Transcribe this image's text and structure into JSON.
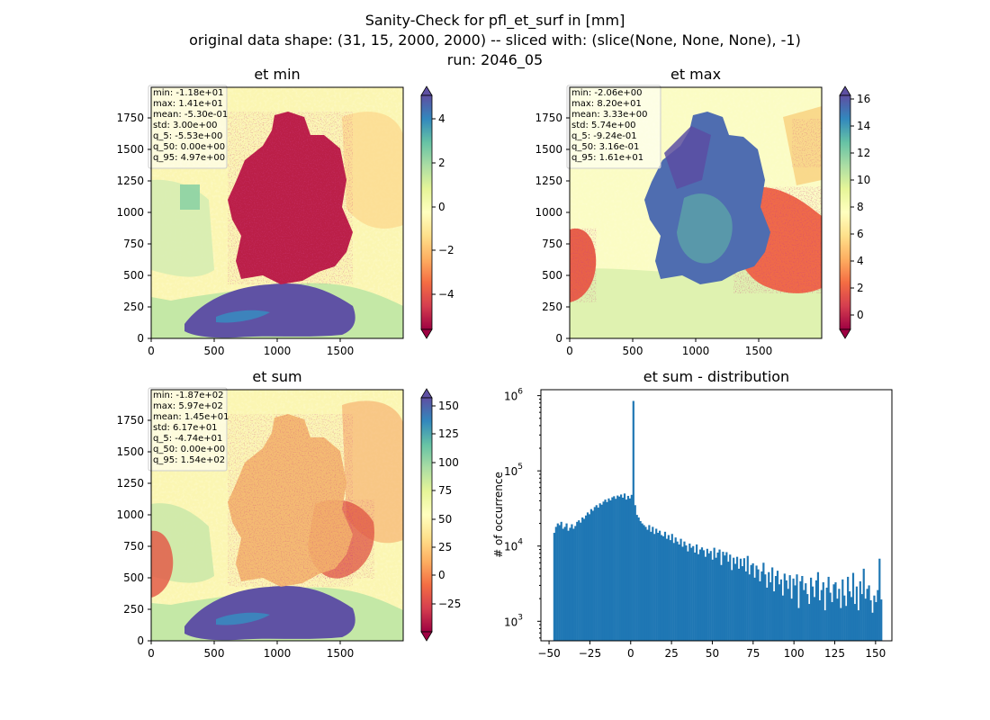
{
  "figure": {
    "title_lines": [
      "Sanity-Check for pfl_et_surf in [mm]",
      "original data shape: (31, 15, 2000, 2000) -- sliced with: (slice(None, None, None), -1)",
      "run: 2046_05"
    ]
  },
  "colors": {
    "hist_bar": "#1f77b4",
    "spectral_stops": [
      "#9e0142",
      "#d53e4f",
      "#f46d43",
      "#fdae61",
      "#fee08b",
      "#ffffbf",
      "#e6f598",
      "#abdda4",
      "#66c2a5",
      "#3288bd",
      "#5e4fa2"
    ]
  },
  "panels": {
    "et_min": {
      "title": "et min",
      "stats": [
        "min: -1.18e+01",
        "max: 1.41e+01",
        "mean: -5.30e-01",
        "std: 3.00e+00",
        "q_5: -5.53e+00",
        "q_50: 0.00e+00",
        "q_95: 4.97e+00"
      ],
      "x_ticks": [
        "0",
        "500",
        "1000",
        "1500"
      ],
      "y_ticks": [
        "0",
        "250",
        "500",
        "750",
        "1000",
        "1250",
        "1500",
        "1750"
      ],
      "colorbar_ticks": [
        "4",
        "2",
        "0",
        "−2",
        "−4"
      ],
      "colorbar_range": [
        -5.53,
        4.97
      ]
    },
    "et_max": {
      "title": "et max",
      "stats": [
        "min: -2.06e+00",
        "max: 8.20e+01",
        "mean: 3.33e+00",
        "std: 5.74e+00",
        "q_5: -9.24e-01",
        "q_50: 3.16e-01",
        "q_95: 1.61e+01"
      ],
      "x_ticks": [
        "0",
        "500",
        "1000",
        "1500"
      ],
      "y_ticks": [
        "0",
        "250",
        "500",
        "750",
        "1000",
        "1250",
        "1500",
        "1750"
      ],
      "colorbar_ticks": [
        "16",
        "14",
        "12",
        "10",
        "8",
        "6",
        "4",
        "2",
        "0"
      ],
      "colorbar_range": [
        -0.924,
        16.1
      ]
    },
    "et_sum": {
      "title": "et sum",
      "stats": [
        "min: -1.87e+02",
        "max: 5.97e+02",
        "mean: 1.45e+01",
        "std: 6.17e+01",
        "q_5: -4.74e+01",
        "q_50: 0.00e+00",
        "q_95: 1.54e+02"
      ],
      "x_ticks": [
        "0",
        "500",
        "1000",
        "1500"
      ],
      "y_ticks": [
        "0",
        "250",
        "500",
        "750",
        "1000",
        "1250",
        "1500",
        "1750"
      ],
      "colorbar_ticks": [
        "150",
        "125",
        "100",
        "75",
        "50",
        "25",
        "0",
        "−25"
      ],
      "colorbar_range": [
        -47.4,
        154
      ]
    }
  },
  "chart_data": {
    "type": "bar",
    "title": "et sum - distribution",
    "ylabel": "# of occurrence",
    "xlabel": "",
    "yscale": "log",
    "xlim": [
      -55,
      160
    ],
    "ylim": [
      550,
      1200000
    ],
    "x_ticks": [
      "−50",
      "−25",
      "0",
      "25",
      "50",
      "75",
      "100",
      "125",
      "150"
    ],
    "x_tick_values": [
      -50,
      -25,
      0,
      25,
      50,
      75,
      100,
      125,
      150
    ],
    "y_ticks": [
      "10",
      "10",
      "10",
      "10"
    ],
    "y_tick_exponents": [
      "3",
      "4",
      "5",
      "6"
    ],
    "y_tick_values": [
      1000,
      10000,
      100000,
      1000000
    ],
    "bin_range": [
      -47.4,
      154
    ],
    "values": [
      15000,
      18000,
      20000,
      19000,
      21000,
      17000,
      18000,
      20000,
      16000,
      17500,
      19500,
      17000,
      18500,
      21000,
      22000,
      20500,
      24000,
      23000,
      25500,
      28000,
      26500,
      31000,
      29500,
      33000,
      35000,
      32500,
      37000,
      35500,
      39000,
      41500,
      38500,
      43000,
      40500,
      44500,
      46000,
      42500,
      47000,
      45500,
      48500,
      44000,
      50000,
      41500,
      46500,
      43000,
      48000,
      850000,
      35000,
      26000,
      24000,
      21500,
      20000,
      19000,
      18000,
      16500,
      19000,
      15500,
      18000,
      14500,
      17000,
      15000,
      16000,
      14000,
      13500,
      15500,
      12500,
      14000,
      12000,
      14500,
      11000,
      13000,
      11500,
      10500,
      12500,
      9800,
      11500,
      10200,
      8500,
      10800,
      9500,
      10000,
      8200,
      10500,
      7800,
      9000,
      9600,
      8800,
      7200,
      9200,
      8000,
      8600,
      6600,
      9500,
      7000,
      8200,
      9000,
      5600,
      8400,
      7500,
      8300,
      6200,
      7700,
      4800,
      7000,
      5800,
      7200,
      5000,
      6800,
      5400,
      6900,
      4600,
      7400,
      4200,
      5600,
      5900,
      3800,
      5500,
      4900,
      3400,
      4600,
      6000,
      4200,
      2800,
      4500,
      3300,
      5200,
      2500,
      4000,
      4700,
      3100,
      3600,
      2200,
      4300,
      3500,
      2700,
      4100,
      2000,
      3700,
      3000,
      4200,
      1500,
      3400,
      4000,
      2600,
      3200,
      2300,
      1700,
      3800,
      2900,
      2100,
      3500,
      4500,
      1900,
      2600,
      3300,
      1400,
      2800,
      3900,
      2400,
      1800,
      3100,
      3300,
      2000,
      2700,
      1500,
      3600,
      2200,
      1600,
      3900,
      2500,
      2100,
      4400,
      1700,
      2900,
      1400,
      3400,
      2300,
      5000,
      2000,
      2700,
      3000,
      1900,
      1300,
      2200,
      1800,
      2600,
      6800,
      1950
    ]
  }
}
